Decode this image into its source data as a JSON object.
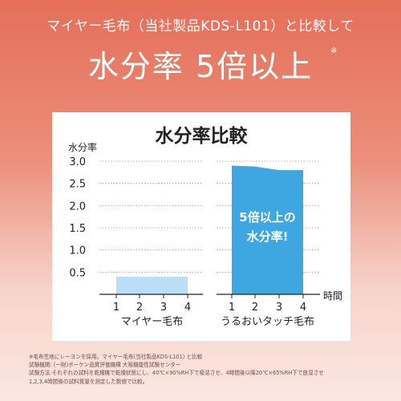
{
  "header": {
    "subtitle": "マイヤー毛布（当社製品KDS-L101）と比較して",
    "title": "水分率 5倍以上",
    "title_mark": "※"
  },
  "chart_data": {
    "type": "area",
    "title": "水分率比較",
    "ylabel": "水分率",
    "xlabel": "時間",
    "ylim": [
      0,
      3.0
    ],
    "yticks": [
      0.5,
      1.0,
      1.5,
      2.0,
      2.5,
      3.0
    ],
    "grid": true,
    "panels": [
      {
        "name": "マイヤー毛布",
        "x": [
          1,
          2,
          3,
          4
        ],
        "values": [
          0.4,
          0.4,
          0.4,
          0.4
        ],
        "color": "#b9dff6"
      },
      {
        "name": "うるおいタッチ毛布",
        "x": [
          1,
          2,
          3,
          4
        ],
        "values": [
          2.9,
          2.88,
          2.8,
          2.8
        ],
        "color": "#3ea6e0"
      }
    ],
    "annotation": {
      "line1": "5倍以上の",
      "line2": "水分率!"
    }
  },
  "footnotes": [
    "※毛布生地にレーヨンを採用。マイヤー毛布(当社製品KDS-L101) と比較",
    "試験機関: (一財)ボーケン品質評価機構 大阪機能性試験センター",
    "試験方法:それぞれの試料を乾燥機で乾燥状態にし、40℃×90%RH下で吸湿させ、4時間後以降20℃×65%RH下で放湿させ",
    "1,2,3,4時間後の試料質量を測定した数値で比較。"
  ],
  "colors": {
    "accent": "#e46f59",
    "blue": "#3ea6e0",
    "light_blue": "#b9dff6"
  }
}
